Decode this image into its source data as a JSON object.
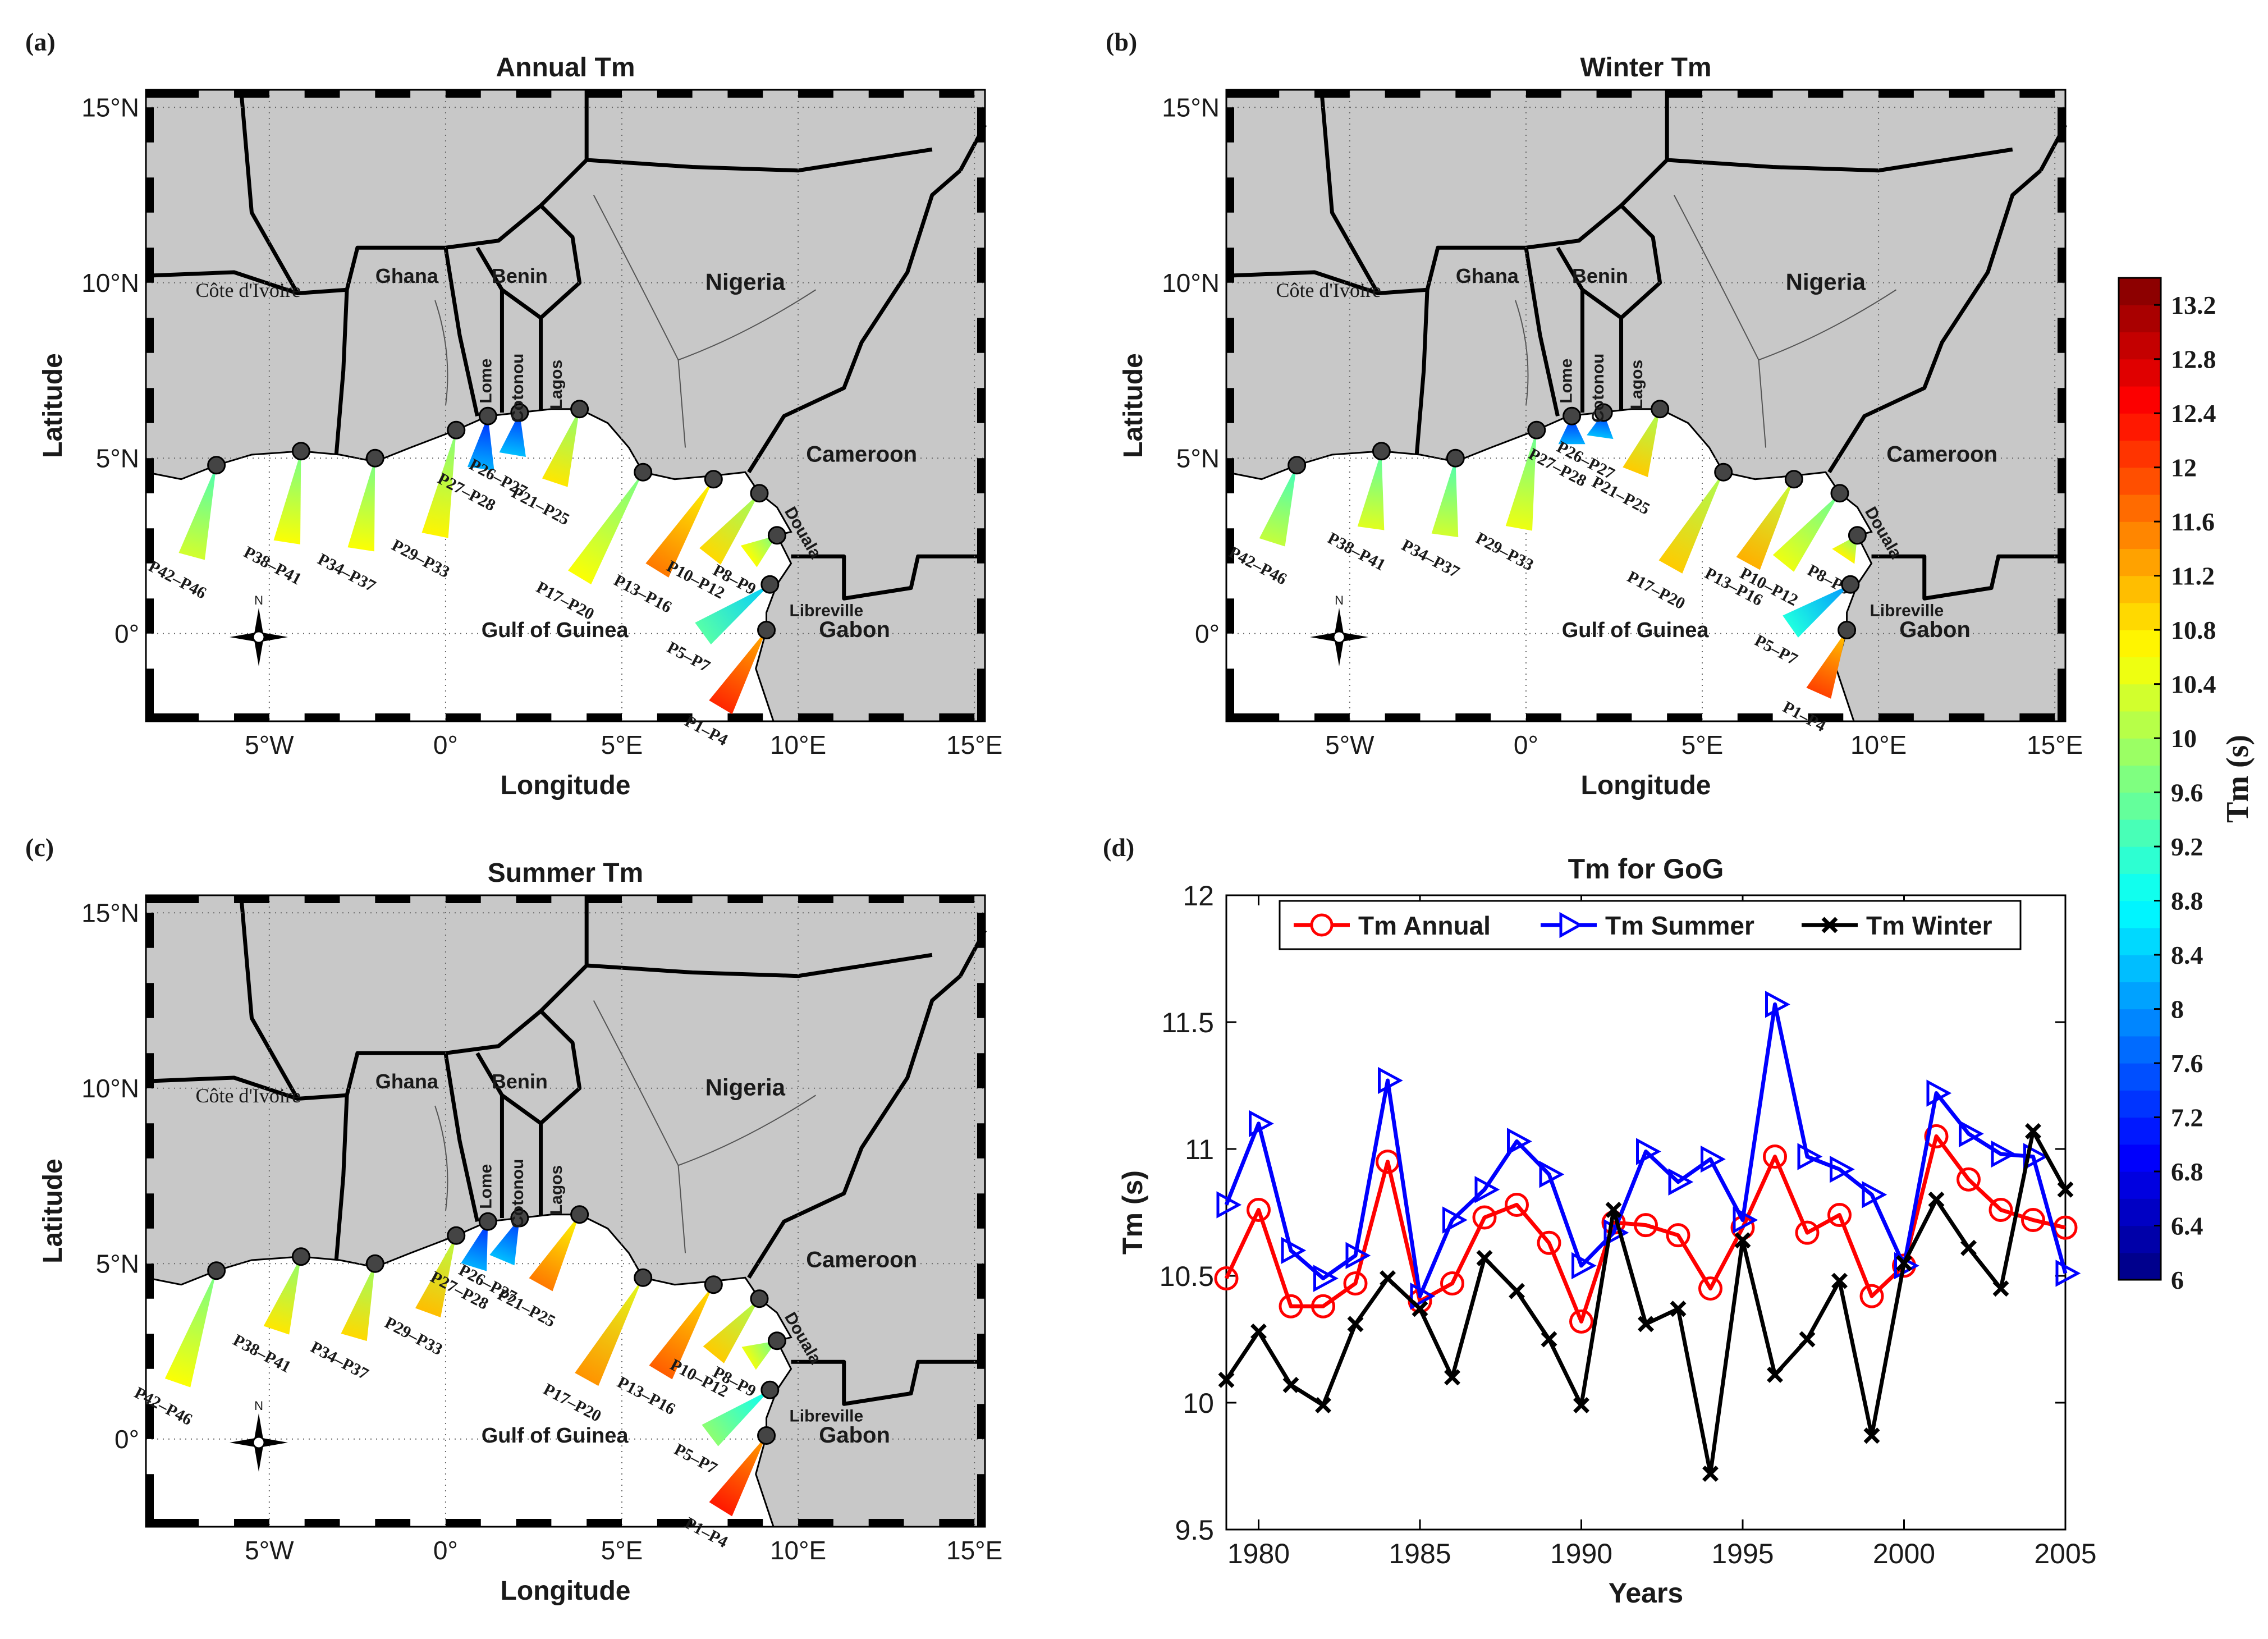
{
  "colors": {
    "land": "#c8c8c8",
    "ocean": "#ffffff",
    "frame": "#000000",
    "annual": "#ff0000",
    "summer": "#0000ff",
    "winter": "#000000",
    "gulf_label": "#1010e0"
  },
  "panels": [
    {
      "letter": "(a)",
      "title": "Annual Tm",
      "xlabel": "Longitude",
      "ylabel": "Latitude",
      "yticks": [
        "15°N",
        "10°N",
        "5°N",
        "0°"
      ],
      "xticks": [
        "5°W",
        "0°",
        "5°E",
        "10°E",
        "15°E"
      ],
      "countries": [
        "Côte d'Ivoire",
        "Ghana",
        "Benin",
        "Nigeria",
        "Cameroon",
        "Gabon"
      ],
      "cities": [
        "Lome",
        "Cotonou",
        "Lagos",
        "Douala",
        "Libreville"
      ],
      "sea_label": "Gulf of Guinea",
      "compass_label": "N",
      "wedges": [
        {
          "label": "P42–P46",
          "tm": 10.3,
          "lon": -6.5,
          "lat": 4.8,
          "elon": -7.2,
          "elat": 2.2
        },
        {
          "label": "P38–P41",
          "tm": 10.6,
          "lon": -4.1,
          "lat": 5.2,
          "elon": -4.5,
          "elat": 2.6
        },
        {
          "label": "P34–P37",
          "tm": 10.6,
          "lon": -2.0,
          "lat": 5.0,
          "elon": -2.4,
          "elat": 2.4
        },
        {
          "label": "P29–P33",
          "tm": 10.7,
          "lon": 0.3,
          "lat": 5.8,
          "elon": -0.3,
          "elat": 2.8
        },
        {
          "label": "P27–P28",
          "tm": 8.2,
          "lon": 1.2,
          "lat": 6.2,
          "elon": 1.0,
          "elat": 4.7
        },
        {
          "label": "P26–P27",
          "tm": 8.3,
          "lon": 2.1,
          "lat": 6.3,
          "elon": 1.9,
          "elat": 5.1
        },
        {
          "label": "P21–P25",
          "tm": 10.8,
          "lon": 3.8,
          "lat": 6.4,
          "elon": 3.1,
          "elat": 4.3
        },
        {
          "label": "P17–P20",
          "tm": 10.6,
          "lon": 5.6,
          "lat": 4.6,
          "elon": 3.8,
          "elat": 1.6
        },
        {
          "label": "P13–P16",
          "tm": 11.6,
          "lon": 7.6,
          "lat": 4.4,
          "elon": 6.0,
          "elat": 1.8
        },
        {
          "label": "P10–P12",
          "tm": 10.9,
          "lon": 8.9,
          "lat": 4.0,
          "elon": 7.5,
          "elat": 2.2
        },
        {
          "label": "P8–P9",
          "tm": 10.6,
          "lon": 9.4,
          "lat": 2.8,
          "elon": 8.6,
          "elat": 2.2
        },
        {
          "label": "P5–P7",
          "tm": 9.4,
          "lon": 9.2,
          "lat": 1.4,
          "elon": 7.3,
          "elat": 0.0
        },
        {
          "label": "P1–P4",
          "tm": 12.2,
          "lon": 9.1,
          "lat": 0.1,
          "elon": 7.8,
          "elat": -2.1
        }
      ]
    },
    {
      "letter": "(b)",
      "title": "Winter Tm",
      "xlabel": "Longitude",
      "ylabel": "Latitude",
      "yticks": [
        "15°N",
        "10°N",
        "5°N",
        "0°"
      ],
      "xticks": [
        "5°W",
        "0°",
        "5°E",
        "10°E",
        "15°E"
      ],
      "countries": [
        "Côte d'Ivoire",
        "Ghana",
        "Benin",
        "Nigeria",
        "Cameroon",
        "Gabon"
      ],
      "cities": [
        "Lome",
        "Cotonou",
        "Lagos",
        "Douala",
        "Libreville"
      ],
      "sea_label": "Gulf of Guinea",
      "compass_label": "N",
      "wedges": [
        {
          "label": "P42–P46",
          "tm": 10.2,
          "lon": -6.5,
          "lat": 4.8,
          "elon": -7.2,
          "elat": 2.6
        },
        {
          "label": "P38–P41",
          "tm": 10.4,
          "lon": -4.1,
          "lat": 5.2,
          "elon": -4.4,
          "elat": 3.0
        },
        {
          "label": "P34–P37",
          "tm": 10.3,
          "lon": -2.0,
          "lat": 5.0,
          "elon": -2.3,
          "elat": 2.8
        },
        {
          "label": "P29–P33",
          "tm": 10.5,
          "lon": 0.3,
          "lat": 5.8,
          "elon": -0.2,
          "elat": 3.0
        },
        {
          "label": "P27–P28",
          "tm": 8.2,
          "lon": 1.3,
          "lat": 6.2,
          "elon": 1.3,
          "elat": 5.4
        },
        {
          "label": "P26–P27",
          "tm": 8.3,
          "lon": 2.2,
          "lat": 6.3,
          "elon": 2.1,
          "elat": 5.6
        },
        {
          "label": "P21–P25",
          "tm": 11.0,
          "lon": 3.8,
          "lat": 6.4,
          "elon": 3.1,
          "elat": 4.6
        },
        {
          "label": "P17–P20",
          "tm": 11.0,
          "lon": 5.6,
          "lat": 4.6,
          "elon": 4.1,
          "elat": 1.9
        },
        {
          "label": "P13–P16",
          "tm": 11.2,
          "lon": 7.6,
          "lat": 4.4,
          "elon": 6.3,
          "elat": 2.0
        },
        {
          "label": "P10–P12",
          "tm": 10.5,
          "lon": 8.9,
          "lat": 4.0,
          "elon": 7.3,
          "elat": 2.0
        },
        {
          "label": "P8–P9",
          "tm": 10.7,
          "lon": 9.4,
          "lat": 2.8,
          "elon": 9.0,
          "elat": 2.2
        },
        {
          "label": "P5–P7",
          "tm": 9.0,
          "lon": 9.2,
          "lat": 1.4,
          "elon": 7.5,
          "elat": 0.2
        },
        {
          "label": "P1–P4",
          "tm": 12.0,
          "lon": 9.1,
          "lat": 0.1,
          "elon": 8.3,
          "elat": -1.7
        }
      ]
    },
    {
      "letter": "(c)",
      "title": "Summer Tm",
      "xlabel": "Longitude",
      "ylabel": "Latitude",
      "yticks": [
        "15°N",
        "10°N",
        "5°N",
        "0°"
      ],
      "xticks": [
        "5°W",
        "0°",
        "5°E",
        "10°E",
        "15°E"
      ],
      "countries": [
        "Côte d'Ivoire",
        "Ghana",
        "Benin",
        "Nigeria",
        "Cameroon",
        "Gabon"
      ],
      "cities": [
        "Lome",
        "Cotonou",
        "Lagos",
        "Douala",
        "Libreville"
      ],
      "sea_label": "Gulf of Guinea",
      "compass_label": "N",
      "wedges": [
        {
          "label": "P42–P46",
          "tm": 10.6,
          "lon": -6.5,
          "lat": 4.8,
          "elon": -7.6,
          "elat": 1.6
        },
        {
          "label": "P38–P41",
          "tm": 10.8,
          "lon": -4.1,
          "lat": 5.2,
          "elon": -4.8,
          "elat": 3.1
        },
        {
          "label": "P34–P37",
          "tm": 10.9,
          "lon": -2.0,
          "lat": 5.0,
          "elon": -2.6,
          "elat": 2.9
        },
        {
          "label": "P29–P33",
          "tm": 11.1,
          "lon": 0.3,
          "lat": 5.8,
          "elon": -0.5,
          "elat": 3.6
        },
        {
          "label": "P27–P28",
          "tm": 8.2,
          "lon": 1.2,
          "lat": 6.2,
          "elon": 0.8,
          "elat": 4.9
        },
        {
          "label": "P26–P27",
          "tm": 8.3,
          "lon": 2.1,
          "lat": 6.3,
          "elon": 1.6,
          "elat": 5.1
        },
        {
          "label": "P21–P25",
          "tm": 11.6,
          "lon": 3.8,
          "lat": 6.4,
          "elon": 2.7,
          "elat": 4.4
        },
        {
          "label": "P17–P20",
          "tm": 11.4,
          "lon": 5.6,
          "lat": 4.6,
          "elon": 4.0,
          "elat": 1.7
        },
        {
          "label": "P13–P16",
          "tm": 11.8,
          "lon": 7.6,
          "lat": 4.4,
          "elon": 6.1,
          "elat": 1.9
        },
        {
          "label": "P10–P12",
          "tm": 11.0,
          "lon": 8.9,
          "lat": 4.0,
          "elon": 7.6,
          "elat": 2.4
        },
        {
          "label": "P8–P9",
          "tm": 10.5,
          "lon": 9.4,
          "lat": 2.8,
          "elon": 8.6,
          "elat": 2.3
        },
        {
          "label": "P5–P7",
          "tm": 9.8,
          "lon": 9.2,
          "lat": 1.4,
          "elon": 7.5,
          "elat": 0.1
        },
        {
          "label": "P1–P4",
          "tm": 12.3,
          "lon": 9.1,
          "lat": 0.1,
          "elon": 7.8,
          "elat": -2.0
        }
      ]
    }
  ],
  "colorbar": {
    "label": "Tm (s)",
    "ticks": [
      "6",
      "6.4",
      "6.8",
      "7.2",
      "7.6",
      "8",
      "8.4",
      "8.8",
      "9.2",
      "9.6",
      "10",
      "10.4",
      "10.8",
      "11.2",
      "11.6",
      "12",
      "12.4",
      "12.8",
      "13.2"
    ],
    "min": 6.0,
    "max": 13.4
  },
  "chart_data": {
    "type": "line",
    "letter": "(d)",
    "title": "Tm for GoG",
    "xlabel": "Years",
    "ylabel": "Tm (s)",
    "xlim": [
      1979,
      2005
    ],
    "ylim": [
      9.5,
      12
    ],
    "xticks": [
      "1980",
      "1985",
      "1990",
      "1995",
      "2000",
      "2005"
    ],
    "yticks": [
      "9.5",
      "10",
      "10.5",
      "11",
      "11.5",
      "12"
    ],
    "x": [
      1979,
      1980,
      1981,
      1982,
      1983,
      1984,
      1985,
      1986,
      1987,
      1988,
      1989,
      1990,
      1991,
      1992,
      1993,
      1994,
      1995,
      1996,
      1997,
      1998,
      1999,
      2000,
      2001,
      2002,
      2003,
      2004,
      2005
    ],
    "series": [
      {
        "name": "Tm Annual",
        "marker": "circle",
        "color": "#ff0000",
        "values": [
          10.49,
          10.76,
          10.38,
          10.38,
          10.47,
          10.95,
          10.4,
          10.47,
          10.73,
          10.78,
          10.63,
          10.32,
          10.71,
          10.7,
          10.66,
          10.45,
          10.69,
          10.97,
          10.67,
          10.74,
          10.42,
          10.54,
          11.05,
          10.88,
          10.76,
          10.72,
          10.69
        ]
      },
      {
        "name": "Tm Summer",
        "marker": "triangle",
        "color": "#0000ff",
        "values": [
          10.78,
          11.1,
          10.6,
          10.49,
          10.58,
          11.27,
          10.42,
          10.72,
          10.84,
          11.03,
          10.9,
          10.54,
          10.67,
          10.99,
          10.87,
          10.96,
          10.72,
          11.57,
          10.97,
          10.92,
          10.82,
          10.54,
          11.22,
          11.06,
          10.98,
          10.97,
          10.51
        ]
      },
      {
        "name": "Tm Winter",
        "marker": "x",
        "color": "#000000",
        "values": [
          10.09,
          10.28,
          10.07,
          9.99,
          10.31,
          10.49,
          10.37,
          10.1,
          10.57,
          10.44,
          10.25,
          9.99,
          10.76,
          10.31,
          10.37,
          9.72,
          10.64,
          10.11,
          10.25,
          10.48,
          9.87,
          10.55,
          10.8,
          10.61,
          10.45,
          11.07,
          10.84
        ]
      }
    ]
  }
}
